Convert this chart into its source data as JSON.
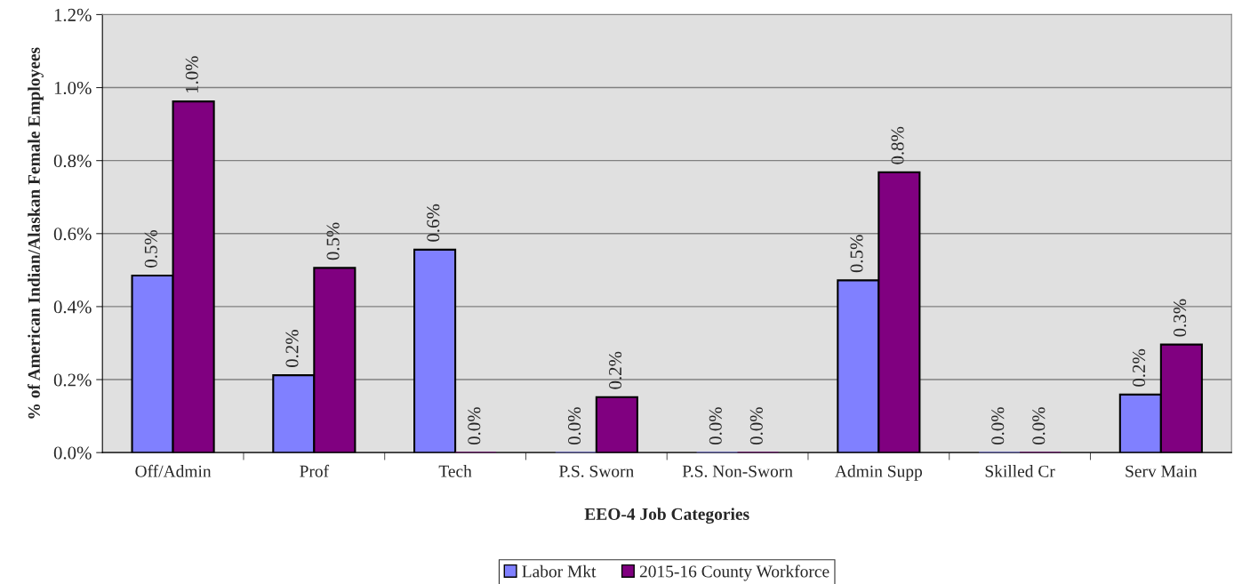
{
  "chart_data": {
    "type": "bar",
    "xlabel": "EEO-4 Job Categories",
    "ylabel": "% of American Indian/Alaskan Female Employees",
    "categories": [
      "Off/Admin",
      "Prof",
      "Tech",
      "P.S. Sworn",
      "P.S. Non-Sworn",
      "Admin Supp",
      "Skilled Cr",
      "Serv Main"
    ],
    "series": [
      {
        "name": "Labor Mkt",
        "color": "#8080ff",
        "values": [
          0.485,
          0.212,
          0.556,
          0,
          0,
          0.472,
          0,
          0.159
        ],
        "value_labels": [
          "0.5%",
          "0.2%",
          "0.6%",
          "0.0%",
          "0.0%",
          "0.5%",
          "0.0%",
          "0.2%"
        ]
      },
      {
        "name": "2015-16 County Workforce",
        "color": "#800080",
        "values": [
          0.962,
          0.506,
          0,
          0.152,
          0,
          0.768,
          0,
          0.296
        ],
        "value_labels": [
          "1.0%",
          "0.5%",
          "0.0%",
          "0.2%",
          "0.0%",
          "0.8%",
          "0.0%",
          "0.3%"
        ]
      }
    ],
    "ylim": [
      0,
      1.2
    ],
    "yticks": [
      {
        "value": 0,
        "label": "0.0%"
      },
      {
        "value": 0.2,
        "label": "0.2%"
      },
      {
        "value": 0.4,
        "label": "0.4%"
      },
      {
        "value": 0.6,
        "label": "0.6%"
      },
      {
        "value": 0.8,
        "label": "0.8%"
      },
      {
        "value": 1.0,
        "label": "1.0%"
      },
      {
        "value": 1.2,
        "label": "1.2%"
      }
    ],
    "grid": "y",
    "legend": "bottom"
  }
}
